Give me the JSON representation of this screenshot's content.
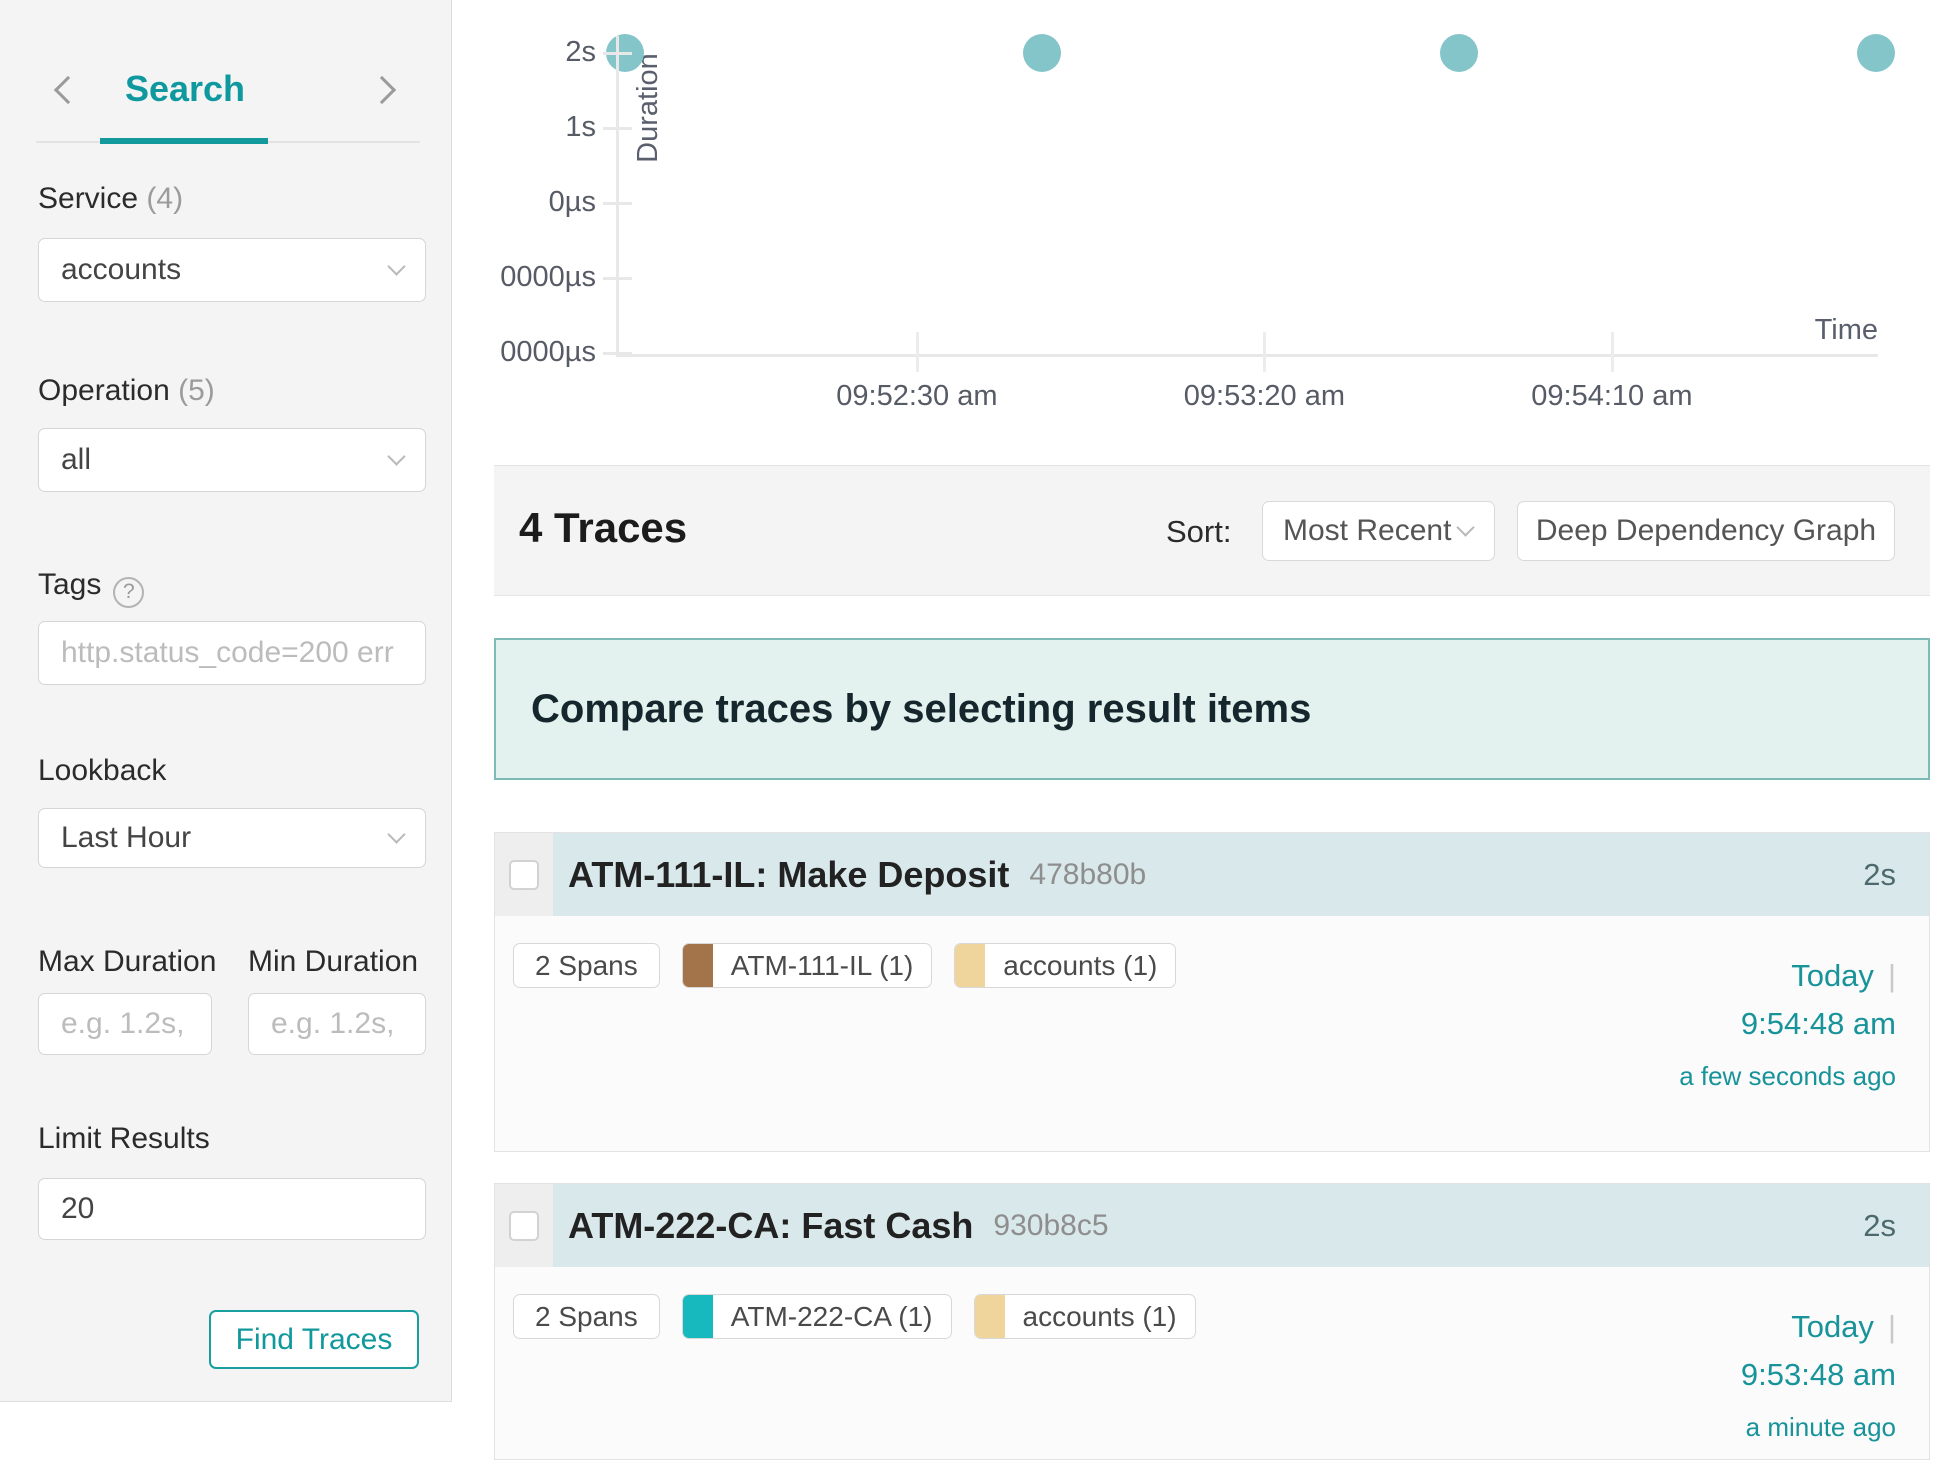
{
  "colors": {
    "accent": "#0f999e",
    "scatter_dot": "#84c5ca",
    "trace_header_bg": "#d9e8ea",
    "banner_bg": "#e3f2ee",
    "banner_border": "#7dbcb6"
  },
  "sidebar": {
    "tab_label": "Search",
    "service_label": "Service",
    "service_count": "(4)",
    "service_value": "accounts",
    "operation_label": "Operation",
    "operation_count": "(5)",
    "operation_value": "all",
    "tags_label": "Tags",
    "help_glyph": "?",
    "tags_placeholder": "http.status_code=200 err",
    "lookback_label": "Lookback",
    "lookback_value": "Last Hour",
    "max_duration_label": "Max Duration",
    "max_duration_placeholder": "e.g. 1.2s,",
    "min_duration_label": "Min Duration",
    "min_duration_placeholder": "e.g. 1.2s,",
    "limit_label": "Limit Results",
    "limit_value": "20",
    "find_button": "Find Traces"
  },
  "chart_data": {
    "type": "scatter",
    "title": "",
    "xlabel": "Time",
    "ylabel": "Duration",
    "y_ticks": [
      "2s",
      "1s",
      "0µs",
      "0000µs",
      "0000µs"
    ],
    "x_ticks": [
      "09:52:30 am",
      "09:53:20 am",
      "09:54:10 am"
    ],
    "y_range": [
      "0µs",
      "2s"
    ],
    "grid": false,
    "legend": false,
    "points": [
      {
        "time": "09:51:48 am",
        "duration": "2s",
        "duration_s": 2
      },
      {
        "time": "09:52:48 am",
        "duration": "2s",
        "duration_s": 2
      },
      {
        "time": "09:53:48 am",
        "duration": "2s",
        "duration_s": 2
      },
      {
        "time": "09:54:48 am",
        "duration": "2s",
        "duration_s": 2
      }
    ]
  },
  "results_bar": {
    "count": "4 Traces",
    "sort_label": "Sort:",
    "sort_value": "Most Recent",
    "ddg_button": "Deep Dependency Graph"
  },
  "banner": {
    "text": "Compare traces by selecting result items"
  },
  "traces": [
    {
      "title": "ATM-111-IL: Make Deposit",
      "trace_id": "478b80b",
      "duration": "2s",
      "spans": "2 Spans",
      "tags": [
        {
          "label": "ATM-111-IL (1)",
          "color": "#a3734a"
        },
        {
          "label": "accounts (1)",
          "color": "#efd49c"
        }
      ],
      "date": "Today",
      "separator": "|",
      "time": "9:54:48 am",
      "relative": "a few seconds ago"
    },
    {
      "title": "ATM-222-CA: Fast Cash",
      "trace_id": "930b8c5",
      "duration": "2s",
      "spans": "2 Spans",
      "tags": [
        {
          "label": "ATM-222-CA (1)",
          "color": "#17b9be"
        },
        {
          "label": "accounts (1)",
          "color": "#efd49c"
        }
      ],
      "date": "Today",
      "separator": "|",
      "time": "9:53:48 am",
      "relative": "a minute ago"
    }
  ]
}
